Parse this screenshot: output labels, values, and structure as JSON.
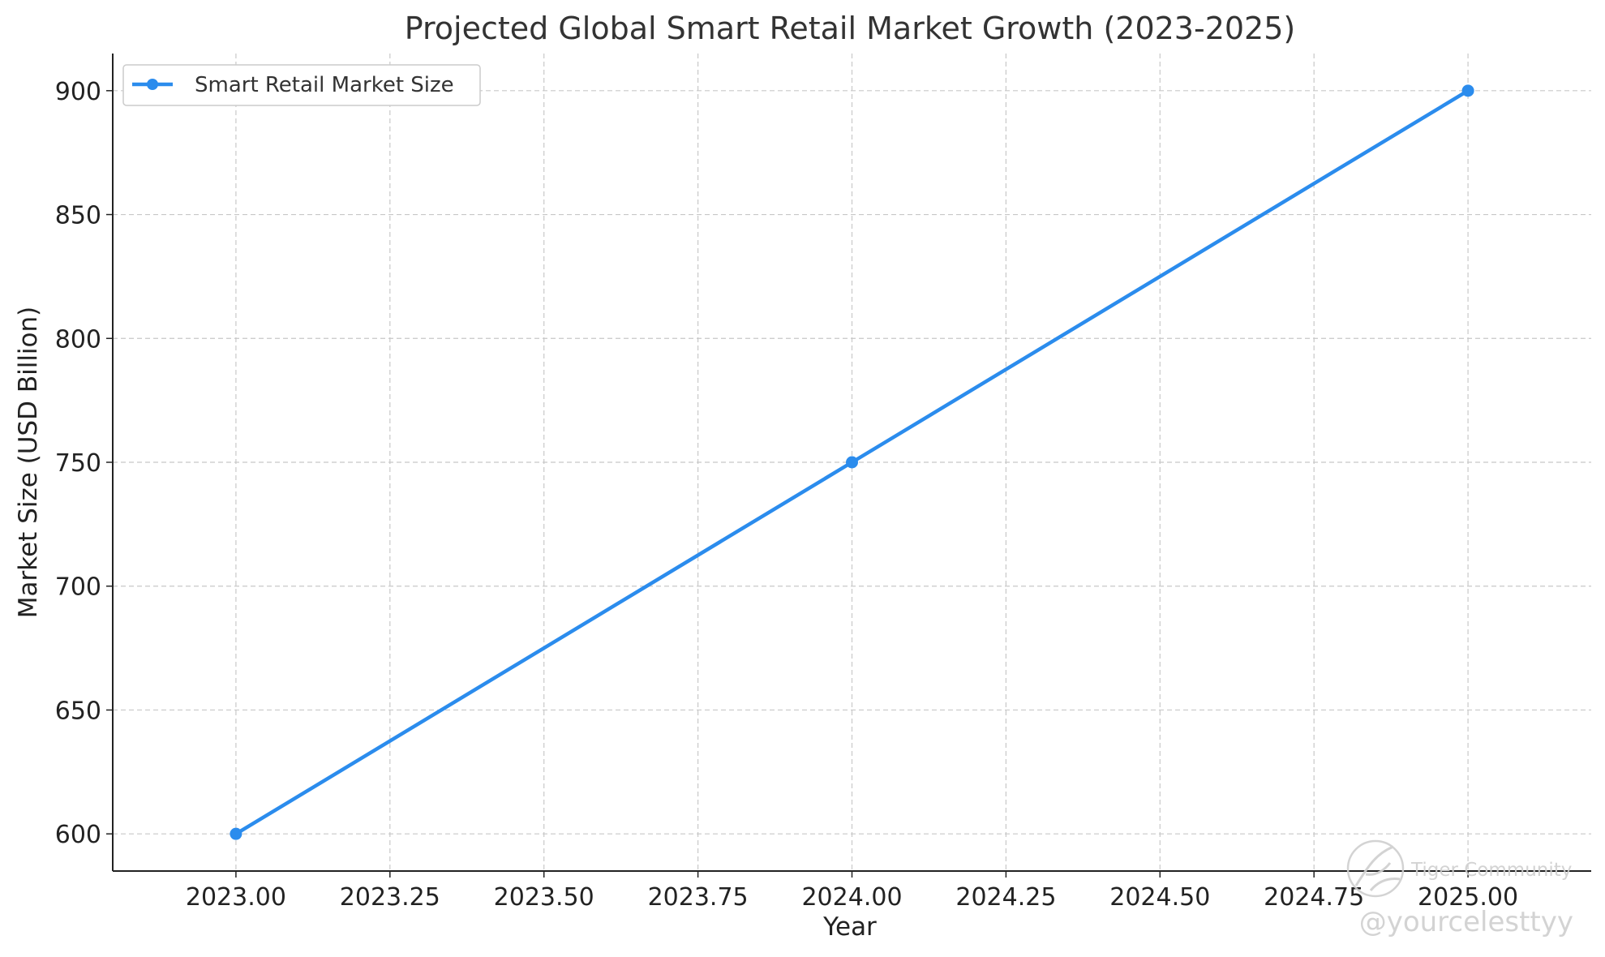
{
  "colors": {
    "series": "#2b8ced",
    "grid": "#c8c8c8",
    "axis": "#222222",
    "watermark": "#cfcfcf"
  },
  "watermark": {
    "logo_icon": "tiger-logo-icon",
    "brand": "Tiger Community",
    "handle": "@yourcelesttyy"
  },
  "chart_data": {
    "type": "line",
    "title": "Projected Global Smart Retail Market Growth (2023-2025)",
    "xlabel": "Year",
    "ylabel": "Market Size (USD Billion)",
    "xlim": [
      2022.8,
      2025.2
    ],
    "ylim": [
      585,
      915
    ],
    "x_ticks": [
      2023.0,
      2023.25,
      2023.5,
      2023.75,
      2024.0,
      2024.25,
      2024.5,
      2024.75,
      2025.0
    ],
    "x_tick_labels": [
      "2023.00",
      "2023.25",
      "2023.50",
      "2023.75",
      "2024.00",
      "2024.25",
      "2024.50",
      "2024.75",
      "2025.00"
    ],
    "y_ticks": [
      600,
      650,
      700,
      750,
      800,
      850,
      900
    ],
    "y_tick_labels": [
      "600",
      "650",
      "700",
      "750",
      "800",
      "850",
      "900"
    ],
    "grid": true,
    "legend_position": "top-left",
    "series": [
      {
        "name": "Smart Retail Market Size",
        "x": [
          2023,
          2024,
          2025
        ],
        "values": [
          600,
          750,
          900
        ],
        "marker": "circle"
      }
    ]
  }
}
